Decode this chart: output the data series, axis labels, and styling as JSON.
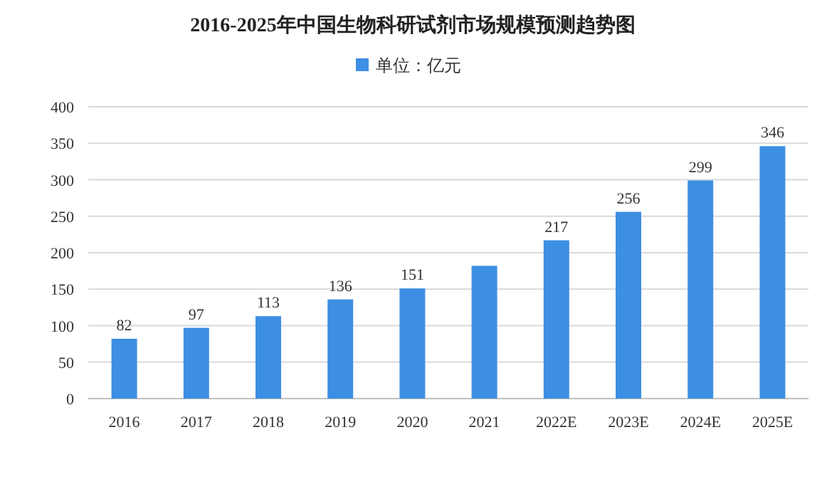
{
  "chart_data": {
    "type": "bar",
    "title": "2016-2025年中国生物科研试剂市场规模预测趋势图",
    "categories": [
      "2016",
      "2017",
      "2018",
      "2019",
      "2020",
      "2021",
      "2022E",
      "2023E",
      "2024E",
      "2025E"
    ],
    "series": [
      {
        "name": "单位：亿元",
        "color": "#3d8fe3",
        "values": [
          82,
          97,
          113,
          136,
          151,
          182,
          217,
          256,
          299,
          346
        ],
        "value_labels": [
          "82",
          "97",
          "113",
          "136",
          "151",
          null,
          "217",
          "256",
          "299",
          "346"
        ]
      }
    ],
    "ylim": [
      0,
      400
    ],
    "yticks": [
      0,
      50,
      100,
      150,
      200,
      250,
      300,
      350,
      400
    ],
    "grid": "y",
    "legend": "top"
  }
}
